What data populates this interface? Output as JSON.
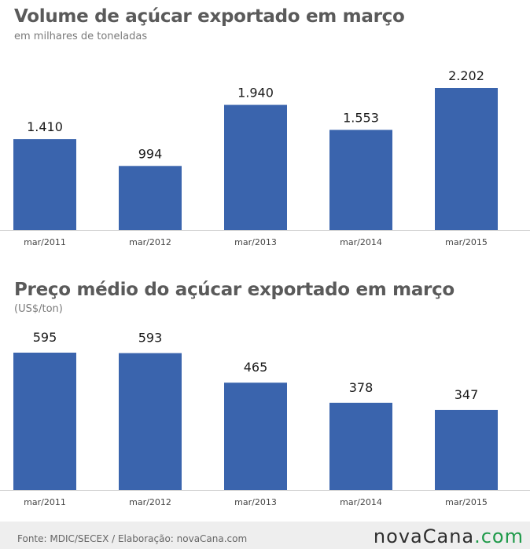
{
  "chart_data": [
    {
      "type": "bar",
      "title": "Volume de açúcar exportado em março",
      "subtitle": "em milhares de toneladas",
      "categories": [
        "mar/2011",
        "mar/2012",
        "mar/2013",
        "mar/2014",
        "mar/2015"
      ],
      "values": [
        1410,
        994,
        1940,
        1553,
        2202
      ],
      "value_labels": [
        "1.410",
        "994",
        "1.940",
        "1.553",
        "2.202"
      ],
      "ylim": [
        0,
        2202
      ],
      "grid": false,
      "bar_color": "#3a64ad"
    },
    {
      "type": "bar",
      "title": "Preço médio do açúcar exportado em março",
      "subtitle": "(US$/ton)",
      "categories": [
        "mar/2011",
        "mar/2012",
        "mar/2013",
        "mar/2014",
        "mar/2015"
      ],
      "values": [
        595,
        593,
        465,
        378,
        347
      ],
      "value_labels": [
        "595",
        "593",
        "465",
        "378",
        "347"
      ],
      "ylim": [
        0,
        595
      ],
      "grid": false,
      "bar_color": "#3a64ad"
    }
  ],
  "footer": {
    "source": "Fonte: MDIC/SECEX / Elaboração: novaCana.com",
    "brand_name": "novaCana",
    "brand_suffix": ".com"
  },
  "colors": {
    "bar": "#3a64ad",
    "title": "#5a5a5a",
    "brand_accent": "#1f9a4a"
  }
}
